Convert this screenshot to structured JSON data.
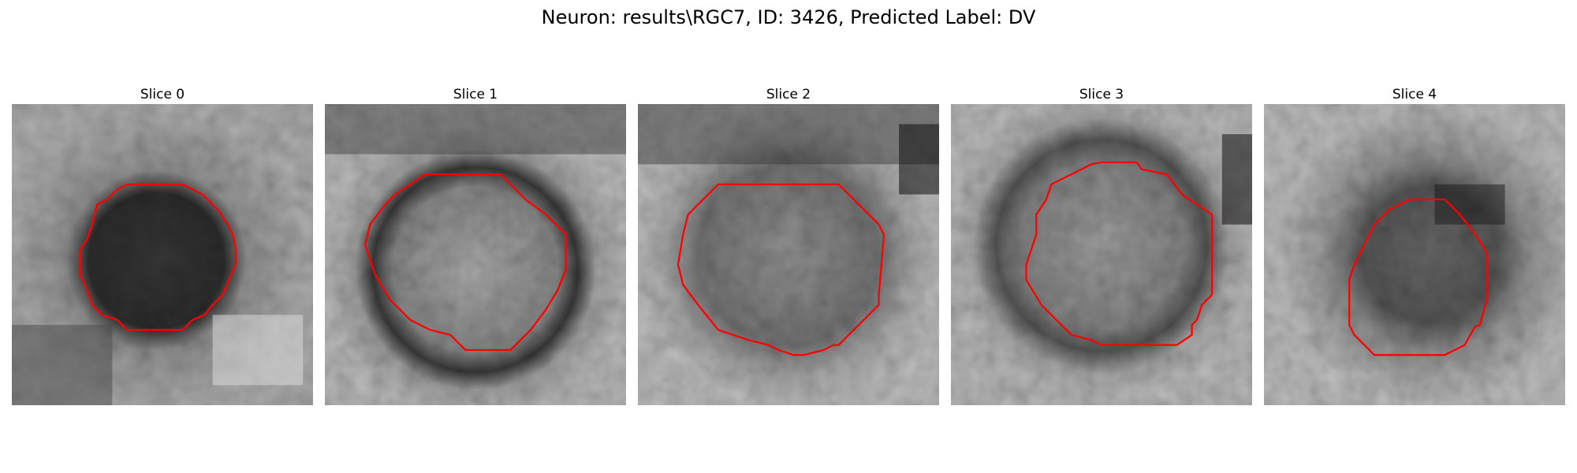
{
  "figure": {
    "title": "Neuron: results\\RGC7, ID: 3426, Predicted Label: DV"
  },
  "colors": {
    "background": "#ffffff",
    "contour": "#ff0000",
    "image_colormap": "grayscale"
  },
  "panels": [
    {
      "title": "Slice 0"
    },
    {
      "title": "Slice 1"
    },
    {
      "title": "Slice 2"
    },
    {
      "title": "Slice 3"
    },
    {
      "title": "Slice 4"
    }
  ]
}
